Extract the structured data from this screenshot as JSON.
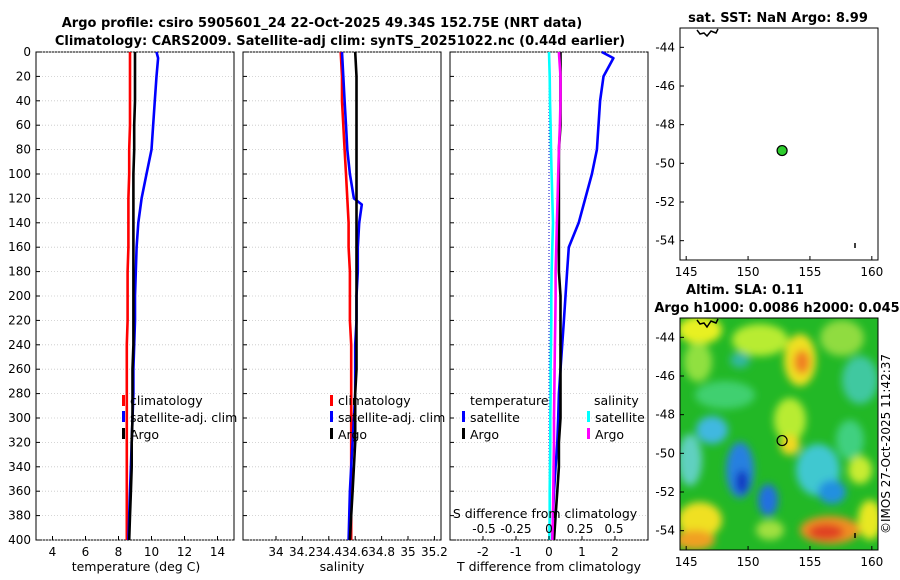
{
  "header": {
    "title_line1": "Argo profile: csiro 5905601_24 22-Oct-2025 49.34S 152.75E (NRT data)",
    "title_line2": "Climatology: CARS2009. Satellite-adj clim: synTS_20251022.nc (0.44d earlier)"
  },
  "watermark": "©IMOS 27-Oct-2025 11:42:37",
  "colors": {
    "climatology": "#ff0000",
    "satellite": "#0000ff",
    "argo": "#000000",
    "sat_diff_s": "#00ffff",
    "argo_diff_s": "#ff00ff"
  },
  "y_axis": {
    "ticks": [
      0,
      20,
      40,
      60,
      80,
      100,
      120,
      140,
      160,
      180,
      200,
      220,
      240,
      260,
      280,
      300,
      320,
      340,
      360,
      380,
      400
    ],
    "range": [
      0,
      400
    ]
  },
  "chart_data": [
    {
      "id": "temperature",
      "type": "line",
      "xlabel": "temperature (deg C)",
      "ylabel": "",
      "xlim": [
        3,
        15
      ],
      "ylim": [
        0,
        400
      ],
      "xticks": [
        4,
        6,
        8,
        10,
        12,
        14
      ],
      "xtick_labels": [
        "4",
        "6",
        "8",
        "10",
        "12",
        "14"
      ],
      "legend": [
        "climatology",
        "satellite-adj. clim",
        "Argo"
      ],
      "series": [
        {
          "name": "climatology",
          "color": "#ff0000",
          "x": [
            8.7,
            8.7,
            8.7,
            8.7,
            8.65,
            8.65,
            8.6,
            8.6,
            8.6,
            8.55,
            8.55,
            8.55,
            8.5,
            8.5,
            8.5,
            8.5,
            8.5,
            8.5,
            8.5,
            8.5,
            8.5
          ],
          "y": [
            0,
            20,
            40,
            60,
            80,
            100,
            120,
            140,
            160,
            180,
            200,
            220,
            240,
            260,
            280,
            300,
            320,
            340,
            360,
            380,
            400
          ]
        },
        {
          "name": "satellite-adj. clim",
          "color": "#0000ff",
          "x": [
            10.3,
            10.4,
            10.3,
            10.2,
            10.0,
            9.7,
            9.4,
            9.2,
            9.1,
            9.05,
            9.0,
            9.0,
            8.95,
            8.9,
            8.9,
            8.85,
            8.8,
            8.75,
            8.7,
            8.65,
            8.6
          ],
          "y": [
            0,
            5,
            20,
            40,
            80,
            100,
            120,
            140,
            160,
            180,
            200,
            220,
            240,
            260,
            280,
            300,
            320,
            340,
            360,
            380,
            400
          ]
        },
        {
          "name": "Argo",
          "color": "#000000",
          "x": [
            9.0,
            9.0,
            9.0,
            8.95,
            8.95,
            8.9,
            8.9,
            8.9,
            8.9,
            8.9,
            8.9,
            8.9,
            8.9,
            8.85,
            8.85,
            8.85,
            8.8,
            8.8,
            8.75,
            8.7,
            8.65
          ],
          "y": [
            0,
            20,
            40,
            60,
            80,
            100,
            120,
            140,
            160,
            180,
            200,
            220,
            240,
            260,
            280,
            300,
            320,
            340,
            360,
            380,
            400
          ]
        }
      ]
    },
    {
      "id": "salinity",
      "type": "line",
      "xlabel": "salinity",
      "ylabel": "",
      "xlim": [
        33.75,
        35.25
      ],
      "ylim": [
        0,
        400
      ],
      "xticks": [
        34,
        34.2,
        34.4,
        34.6,
        34.8,
        35,
        35.2
      ],
      "xtick_labels": [
        "34",
        "34.2",
        "34.4",
        "34.6",
        "34.8",
        "35",
        "35.2"
      ],
      "legend": [
        "climatology",
        "satellite-adj. clim",
        "Argo"
      ],
      "series": [
        {
          "name": "climatology",
          "color": "#ff0000",
          "x": [
            34.49,
            34.5,
            34.5,
            34.51,
            34.52,
            34.53,
            34.54,
            34.55,
            34.55,
            34.56,
            34.56,
            34.56,
            34.57,
            34.57,
            34.57,
            34.57,
            34.57,
            34.57,
            34.57,
            34.57,
            34.57
          ],
          "y": [
            0,
            20,
            40,
            60,
            80,
            100,
            120,
            140,
            160,
            180,
            200,
            220,
            240,
            260,
            280,
            300,
            320,
            340,
            360,
            380,
            400
          ]
        },
        {
          "name": "satellite-adj. clim",
          "color": "#0000ff",
          "x": [
            34.5,
            34.51,
            34.52,
            34.53,
            34.54,
            34.56,
            34.59,
            34.65,
            34.63,
            34.62,
            34.62,
            34.61,
            34.61,
            34.6,
            34.6,
            34.6,
            34.59,
            34.58,
            34.57,
            34.56,
            34.55
          ],
          "y": [
            0,
            20,
            40,
            60,
            80,
            100,
            120,
            125,
            140,
            160,
            180,
            200,
            220,
            240,
            260,
            280,
            300,
            320,
            340,
            360,
            400
          ]
        },
        {
          "name": "Argo",
          "color": "#000000",
          "x": [
            34.6,
            34.61,
            34.61,
            34.61,
            34.61,
            34.61,
            34.61,
            34.61,
            34.61,
            34.61,
            34.61,
            34.61,
            34.61,
            34.61,
            34.6,
            34.6,
            34.6,
            34.59,
            34.58,
            34.57,
            34.56
          ],
          "y": [
            0,
            20,
            40,
            60,
            80,
            100,
            120,
            140,
            160,
            180,
            200,
            220,
            240,
            260,
            280,
            300,
            320,
            340,
            360,
            380,
            400
          ]
        }
      ]
    },
    {
      "id": "difference",
      "type": "line",
      "xlabel": "T difference from climatology",
      "ylabel": "",
      "xlim": [
        -3,
        3
      ],
      "ylim": [
        0,
        400
      ],
      "xticks": [
        -2,
        -1,
        0,
        1,
        2
      ],
      "xtick_labels": [
        "-2",
        "-1",
        "0",
        "1",
        "2"
      ],
      "secondary_xlabel": "S difference from climatology",
      "secondary_ticks": [
        "-0.5",
        "-0.25",
        "0",
        "0.25",
        "0.5"
      ],
      "legend": {
        "temperature": [
          "satellite",
          "Argo"
        ],
        "salinity": [
          "satellite",
          "Argo"
        ]
      },
      "legend_headers": [
        "temperature",
        "salinity"
      ],
      "series": [
        {
          "name": "temperature satellite",
          "color": "#0000ff",
          "x": [
            1.6,
            1.95,
            1.65,
            1.55,
            1.45,
            1.3,
            1.1,
            0.9,
            0.6,
            0.55,
            0.5,
            0.45,
            0.4,
            0.35,
            0.3,
            0.28,
            0.25,
            0.2,
            0.15,
            0.12,
            0.1
          ],
          "y": [
            0,
            5,
            20,
            40,
            80,
            100,
            120,
            140,
            160,
            180,
            200,
            220,
            240,
            260,
            280,
            300,
            320,
            340,
            360,
            380,
            400
          ]
        },
        {
          "name": "temperature Argo",
          "color": "#000000",
          "x": [
            0.35,
            0.35,
            0.35,
            0.35,
            0.3,
            0.3,
            0.3,
            0.3,
            0.3,
            0.3,
            0.35,
            0.35,
            0.35,
            0.35,
            0.35,
            0.35,
            0.3,
            0.3,
            0.25,
            0.2,
            0.15
          ],
          "y": [
            0,
            20,
            40,
            60,
            80,
            100,
            120,
            140,
            160,
            180,
            200,
            220,
            240,
            260,
            280,
            300,
            320,
            340,
            360,
            380,
            400
          ]
        },
        {
          "name": "salinity satellite",
          "color": "#00ffff",
          "x": [
            0.0,
            0.02,
            0.03,
            0.05,
            0.06,
            0.08,
            0.1,
            0.12,
            0.1,
            0.08,
            0.07,
            0.07,
            0.06,
            0.05,
            0.05,
            0.04,
            0.04,
            0.03,
            0.02,
            0.02,
            0.01
          ],
          "y": [
            0,
            20,
            40,
            60,
            80,
            100,
            120,
            140,
            160,
            180,
            200,
            220,
            240,
            260,
            280,
            300,
            320,
            340,
            360,
            380,
            400
          ]
        },
        {
          "name": "salinity Argo",
          "color": "#ff00ff",
          "x": [
            0.3,
            0.35,
            0.35,
            0.33,
            0.3,
            0.28,
            0.26,
            0.24,
            0.22,
            0.2,
            0.2,
            0.19,
            0.18,
            0.17,
            0.16,
            0.15,
            0.15,
            0.14,
            0.13,
            0.12,
            0.1
          ],
          "y": [
            0,
            20,
            40,
            60,
            80,
            100,
            120,
            140,
            160,
            180,
            200,
            220,
            240,
            260,
            280,
            300,
            320,
            340,
            360,
            380,
            400
          ]
        }
      ]
    },
    {
      "id": "sst_map",
      "type": "scatter",
      "title": "sat. SST: NaN Argo: 8.99",
      "xlim": [
        144.5,
        160.5
      ],
      "ylim": [
        -55,
        -43
      ],
      "xticks": [
        145,
        150,
        155,
        160
      ],
      "yticks": [
        -44,
        -46,
        -48,
        -50,
        -52,
        -54
      ],
      "points": [
        {
          "name": "Argo float",
          "x": 152.75,
          "y": -49.34
        }
      ]
    },
    {
      "id": "sla_map",
      "type": "heatmap",
      "title_line1": "Altim. SLA: 0.11",
      "title_line2": "Argo h1000: 0.0086 h2000: 0.045",
      "xlim": [
        144.5,
        160.5
      ],
      "ylim": [
        -55,
        -43
      ],
      "xticks": [
        145,
        150,
        155,
        160
      ],
      "yticks": [
        -44,
        -46,
        -48,
        -50,
        -52,
        -54
      ],
      "points": [
        {
          "name": "Argo float",
          "x": 152.75,
          "y": -49.34
        }
      ]
    }
  ]
}
